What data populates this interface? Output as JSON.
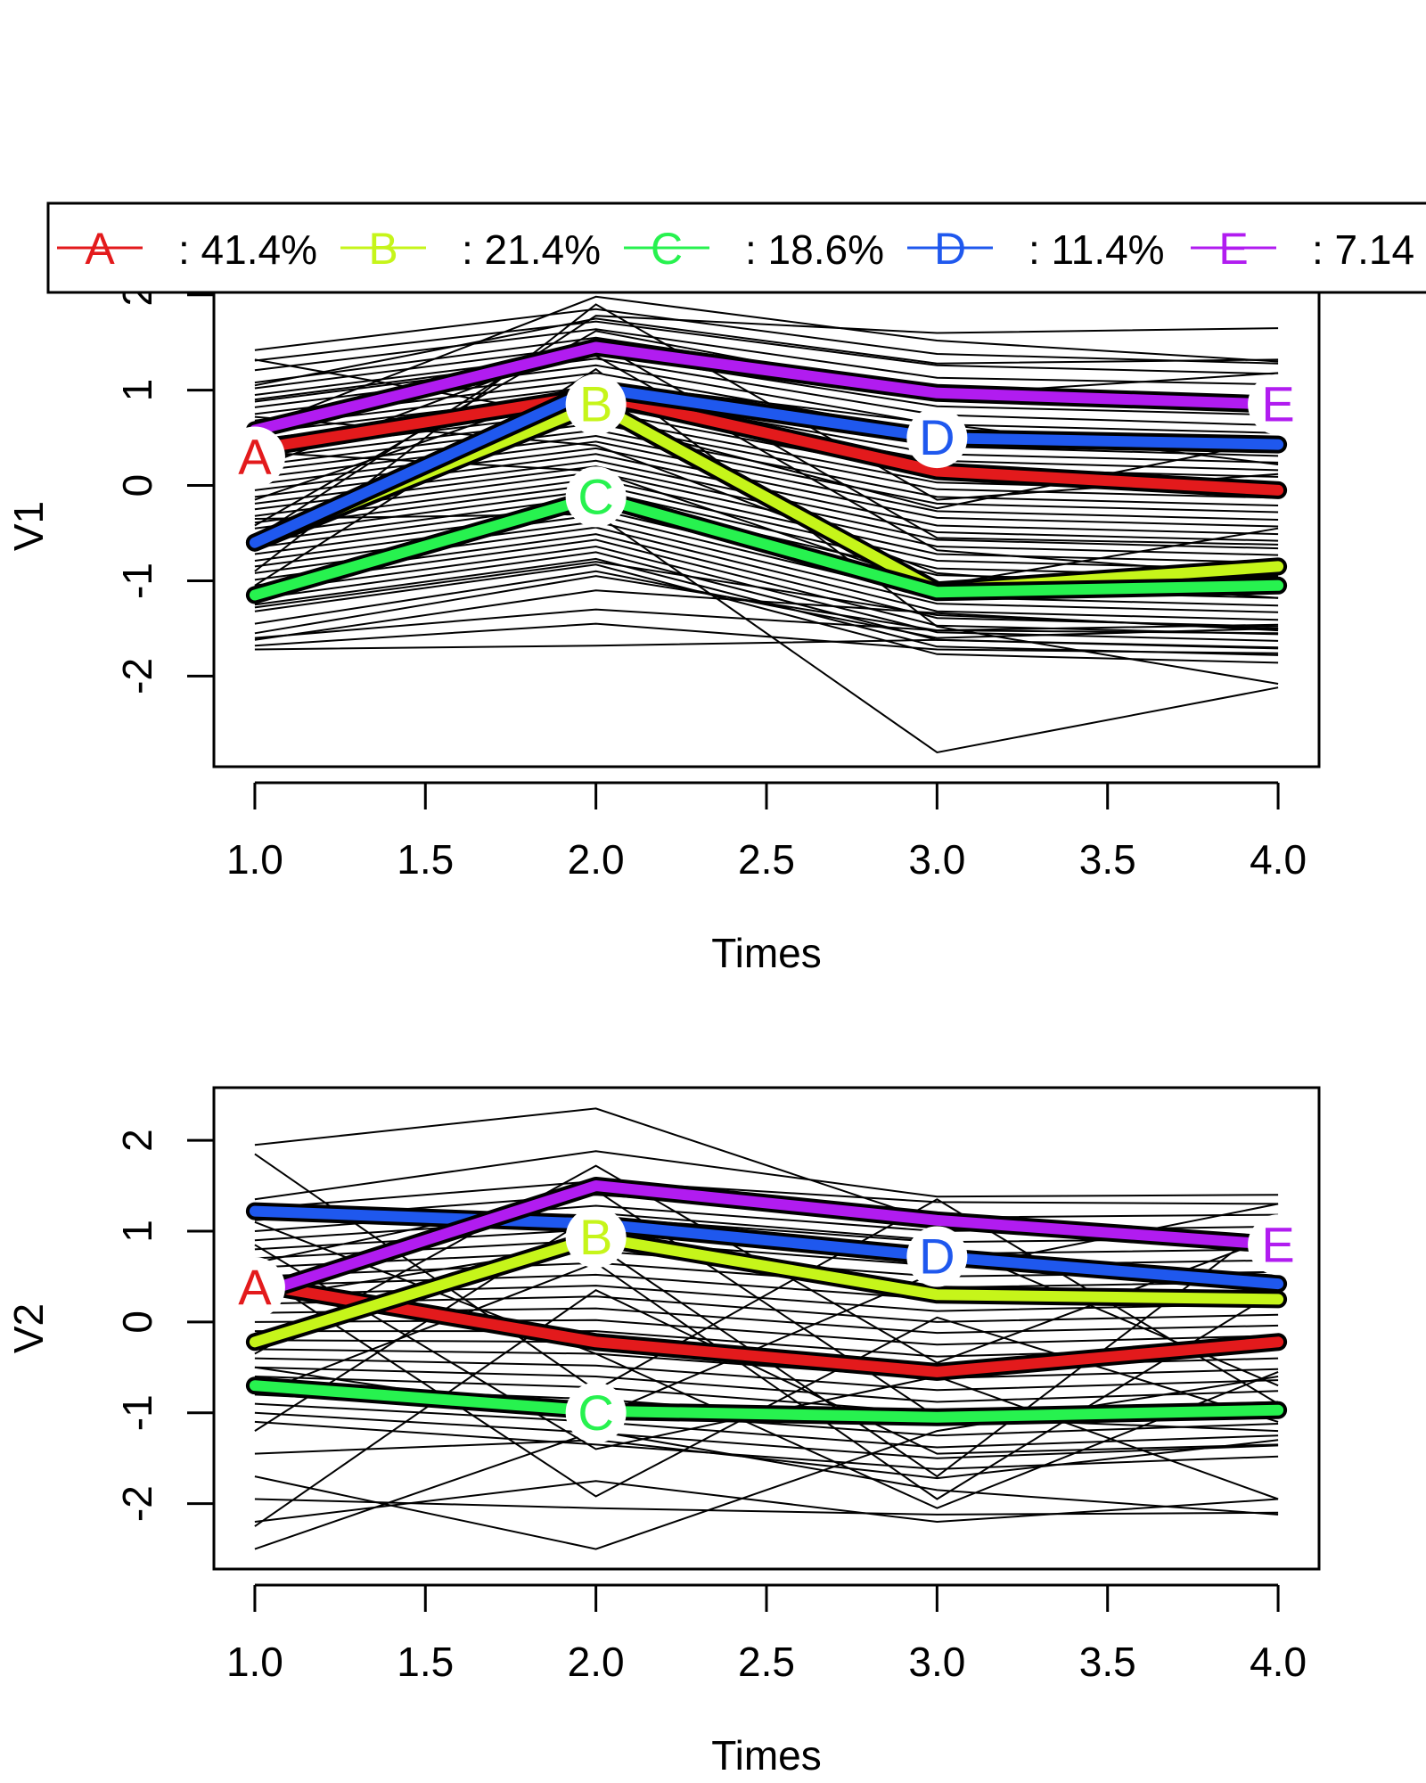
{
  "legend": {
    "placement": "top",
    "entries": [
      {
        "key": "A",
        "label": ": 41.4%",
        "color": "#e31a1c"
      },
      {
        "key": "B",
        "label": ": 21.4%",
        "color": "#c6f51a"
      },
      {
        "key": "C",
        "label": ": 18.6%",
        "color": "#27f24f"
      },
      {
        "key": "D",
        "label": ": 11.4%",
        "color": "#1f58ee"
      },
      {
        "key": "E",
        "label": ": 7.14",
        "color": "#b11cf0"
      }
    ]
  },
  "chart_data": [
    {
      "type": "line",
      "xlabel": "Times",
      "ylabel": "V1",
      "xlim": [
        0.88,
        4.12
      ],
      "ylim": [
        -2.95,
        2.1
      ],
      "x_ticks": [
        "1.0",
        "1.5",
        "2.0",
        "2.5",
        "3.0",
        "3.5",
        "4.0"
      ],
      "y_ticks": [
        "-2",
        "-1",
        "0",
        "1",
        "2"
      ],
      "x": [
        1,
        2,
        3,
        4
      ],
      "background_trajectories": [
        [
          1.42,
          1.85,
          1.38,
          1.28
        ],
        [
          1.31,
          1.72,
          1.26,
          1.17
        ],
        [
          1.21,
          1.64,
          1.13,
          1.06
        ],
        [
          1.08,
          1.55,
          1.02,
          0.93
        ],
        [
          1.02,
          1.47,
          0.92,
          0.85
        ],
        [
          0.95,
          1.39,
          0.83,
          0.74
        ],
        [
          0.88,
          1.33,
          0.74,
          0.63
        ],
        [
          0.82,
          1.26,
          0.64,
          0.55
        ],
        [
          0.75,
          1.18,
          0.55,
          0.47
        ],
        [
          0.68,
          1.11,
          0.48,
          0.39
        ],
        [
          0.61,
          1.04,
          0.41,
          0.31
        ],
        [
          0.55,
          0.97,
          0.33,
          0.24
        ],
        [
          0.48,
          0.91,
          0.26,
          0.16
        ],
        [
          0.41,
          0.84,
          0.18,
          0.09
        ],
        [
          0.35,
          0.78,
          0.11,
          0.01
        ],
        [
          0.28,
          0.71,
          0.03,
          -0.06
        ],
        [
          0.21,
          0.65,
          -0.04,
          -0.13
        ],
        [
          0.15,
          0.58,
          -0.12,
          -0.21
        ],
        [
          0.08,
          0.52,
          -0.19,
          -0.28
        ],
        [
          0.01,
          0.46,
          -0.27,
          -0.36
        ],
        [
          -0.05,
          0.39,
          -0.34,
          -0.43
        ],
        [
          -0.12,
          0.33,
          -0.42,
          -0.51
        ],
        [
          -0.19,
          0.26,
          -0.49,
          -0.58
        ],
        [
          -0.25,
          0.2,
          -0.57,
          -0.66
        ],
        [
          -0.32,
          0.14,
          -0.64,
          -0.73
        ],
        [
          -0.39,
          0.07,
          -0.72,
          -0.81
        ],
        [
          -0.45,
          0.01,
          -0.79,
          -0.88
        ],
        [
          -0.52,
          -0.05,
          -0.87,
          -0.96
        ],
        [
          -0.59,
          -0.12,
          -0.94,
          -1.03
        ],
        [
          -0.65,
          -0.18,
          -1.02,
          -1.11
        ],
        [
          -0.72,
          -0.25,
          -1.09,
          -1.18
        ],
        [
          -0.79,
          -0.31,
          -1.17,
          -1.26
        ],
        [
          -0.85,
          -0.38,
          -1.24,
          -1.33
        ],
        [
          -0.92,
          -0.44,
          -1.32,
          -1.41
        ],
        [
          -0.99,
          -0.51,
          -1.39,
          -1.48
        ],
        [
          -1.05,
          -0.57,
          -1.47,
          -1.56
        ],
        [
          -1.12,
          -0.64,
          -1.54,
          -1.63
        ],
        [
          -1.19,
          -0.7,
          -1.62,
          -1.71
        ],
        [
          -1.25,
          -0.77,
          -1.69,
          -1.78
        ],
        [
          -1.32,
          -0.83,
          -1.77,
          -1.86
        ],
        [
          -1.45,
          -0.9,
          -1.6,
          -1.5
        ],
        [
          -1.6,
          -1.3,
          -1.52,
          -1.55
        ],
        [
          -1.68,
          -1.45,
          -1.72,
          -1.76
        ],
        [
          -1.72,
          -1.68,
          -1.62,
          -1.7
        ],
        [
          -1.55,
          -0.95,
          -1.52,
          -1.46
        ],
        [
          -1.28,
          -0.8,
          -1.36,
          -1.5
        ],
        [
          -1.62,
          -1.1,
          -1.34,
          -1.52
        ],
        [
          -0.35,
          -0.3,
          -2.8,
          -2.12
        ],
        [
          -0.55,
          1.78,
          1.6,
          1.65
        ],
        [
          0.6,
          1.98,
          1.52,
          1.3
        ],
        [
          1.05,
          1.75,
          1.28,
          1.32
        ],
        [
          -0.42,
          1.62,
          0.95,
          1.18
        ],
        [
          0.18,
          1.5,
          -0.55,
          -0.62
        ],
        [
          1.32,
          0.68,
          -0.24,
          0.48
        ],
        [
          -0.9,
          1.9,
          -0.15,
          0.12
        ],
        [
          0.72,
          0.42,
          -0.92,
          -1.18
        ],
        [
          -1.05,
          1.22,
          -1.48,
          -2.08
        ],
        [
          0.9,
          1.36,
          -0.68,
          -0.95
        ],
        [
          -0.15,
          1.08,
          0.65,
          0.22
        ],
        [
          0.35,
          0.15,
          -1.05,
          -0.45
        ]
      ],
      "series": [
        {
          "key": "A",
          "color": "#e31a1c",
          "values": [
            0.38,
            0.95,
            0.15,
            -0.05
          ]
        },
        {
          "key": "B",
          "color": "#c6f51a",
          "values": [
            -0.6,
            0.85,
            -1.1,
            -0.85
          ]
        },
        {
          "key": "C",
          "color": "#27f24f",
          "values": [
            -1.15,
            -0.12,
            -1.12,
            -1.05
          ]
        },
        {
          "key": "D",
          "color": "#1f58ee",
          "values": [
            -0.6,
            1.02,
            0.5,
            0.43
          ]
        },
        {
          "key": "E",
          "color": "#b11cf0",
          "values": [
            0.58,
            1.45,
            0.97,
            0.85
          ]
        }
      ],
      "point_labels": [
        {
          "key": "A",
          "color": "#e31a1c",
          "x": 1,
          "y": 0.3
        },
        {
          "key": "B",
          "color": "#c6f51a",
          "x": 2,
          "y": 0.85
        },
        {
          "key": "C",
          "color": "#27f24f",
          "x": 2,
          "y": -0.12
        },
        {
          "key": "D",
          "color": "#1f58ee",
          "x": 3,
          "y": 0.5
        },
        {
          "key": "E",
          "color": "#b11cf0",
          "x": 4,
          "y": 0.85
        }
      ]
    },
    {
      "type": "line",
      "xlabel": "Times",
      "ylabel": "V2",
      "xlim": [
        0.88,
        4.12
      ],
      "ylim": [
        -2.72,
        2.58
      ],
      "x_ticks": [
        "1.0",
        "1.5",
        "2.0",
        "2.5",
        "3.0",
        "3.5",
        "4.0"
      ],
      "y_ticks": [
        "-2",
        "-1",
        "0",
        "1",
        "2"
      ],
      "x": [
        1,
        2,
        3,
        4
      ],
      "background_trajectories": [
        [
          1.35,
          1.88,
          1.38,
          1.4
        ],
        [
          1.25,
          1.55,
          1.32,
          1.3
        ],
        [
          1.12,
          1.4,
          1.15,
          1.18
        ],
        [
          1.0,
          1.28,
          1.0,
          1.05
        ],
        [
          0.9,
          1.15,
          0.88,
          0.92
        ],
        [
          0.8,
          1.02,
          0.75,
          0.8
        ],
        [
          0.7,
          0.9,
          0.62,
          0.68
        ],
        [
          0.6,
          0.78,
          0.5,
          0.55
        ],
        [
          0.5,
          0.65,
          0.38,
          0.44
        ],
        [
          0.4,
          0.52,
          0.25,
          0.32
        ],
        [
          0.3,
          0.4,
          0.12,
          0.2
        ],
        [
          0.2,
          0.28,
          0.0,
          0.08
        ],
        [
          0.1,
          0.15,
          -0.12,
          -0.04
        ],
        [
          0.0,
          0.02,
          -0.25,
          -0.15
        ],
        [
          -0.1,
          -0.1,
          -0.38,
          -0.28
        ],
        [
          -0.2,
          -0.22,
          -0.5,
          -0.4
        ],
        [
          -0.3,
          -0.35,
          -0.62,
          -0.52
        ],
        [
          -0.4,
          -0.48,
          -0.75,
          -0.64
        ],
        [
          -0.5,
          -0.6,
          -0.88,
          -0.76
        ],
        [
          -0.6,
          -0.72,
          -1.0,
          -0.88
        ],
        [
          -0.7,
          -0.85,
          -1.12,
          -1.0
        ],
        [
          -0.8,
          -0.98,
          -1.25,
          -1.12
        ],
        [
          -0.9,
          -1.1,
          -1.38,
          -1.25
        ],
        [
          -1.0,
          -1.22,
          -1.5,
          -1.36
        ],
        [
          -1.1,
          -1.35,
          -1.62,
          -1.48
        ],
        [
          -1.45,
          -1.3,
          -1.72,
          -1.3
        ],
        [
          -1.95,
          -2.05,
          -2.12,
          -2.1
        ],
        [
          -2.2,
          -1.75,
          -2.2,
          -1.95
        ],
        [
          -2.5,
          -1.2,
          -1.85,
          -2.12
        ],
        [
          -1.7,
          -2.5,
          -1.2,
          -0.6
        ],
        [
          -2.25,
          0.35,
          -1.45,
          -1.35
        ],
        [
          1.95,
          2.35,
          1.1,
          0.9
        ],
        [
          1.85,
          -0.75,
          1.35,
          -0.9
        ],
        [
          0.55,
          -1.92,
          0.05,
          -1.1
        ],
        [
          -0.35,
          1.72,
          -0.45,
          0.95
        ],
        [
          1.1,
          -0.35,
          -2.05,
          -0.55
        ],
        [
          -0.8,
          0.65,
          -1.95,
          0.35
        ],
        [
          0.85,
          -1.4,
          -0.6,
          -1.95
        ],
        [
          -1.2,
          1.2,
          0.9,
          -0.7
        ],
        [
          0.25,
          0.85,
          -1.7,
          1.15
        ],
        [
          -0.5,
          -1.05,
          0.55,
          1.3
        ],
        [
          0.65,
          1.45,
          -1.05,
          -1.2
        ]
      ],
      "series": [
        {
          "key": "A",
          "color": "#e31a1c",
          "values": [
            0.42,
            -0.22,
            -0.55,
            -0.22
          ]
        },
        {
          "key": "B",
          "color": "#c6f51a",
          "values": [
            -0.22,
            0.93,
            0.3,
            0.25
          ]
        },
        {
          "key": "C",
          "color": "#27f24f",
          "values": [
            -0.7,
            -0.98,
            -1.05,
            -0.97
          ]
        },
        {
          "key": "D",
          "color": "#1f58ee",
          "values": [
            1.22,
            1.08,
            0.72,
            0.42
          ]
        },
        {
          "key": "E",
          "color": "#b11cf0",
          "values": [
            0.3,
            1.5,
            1.12,
            0.85
          ]
        }
      ],
      "point_labels": [
        {
          "key": "A",
          "color": "#e31a1c",
          "x": 1,
          "y": 0.38
        },
        {
          "key": "B",
          "color": "#c6f51a",
          "x": 2,
          "y": 0.93
        },
        {
          "key": "C",
          "color": "#27f24f",
          "x": 2,
          "y": -1.0
        },
        {
          "key": "D",
          "color": "#1f58ee",
          "x": 3,
          "y": 0.72
        },
        {
          "key": "E",
          "color": "#b11cf0",
          "x": 4,
          "y": 0.85
        }
      ]
    }
  ]
}
